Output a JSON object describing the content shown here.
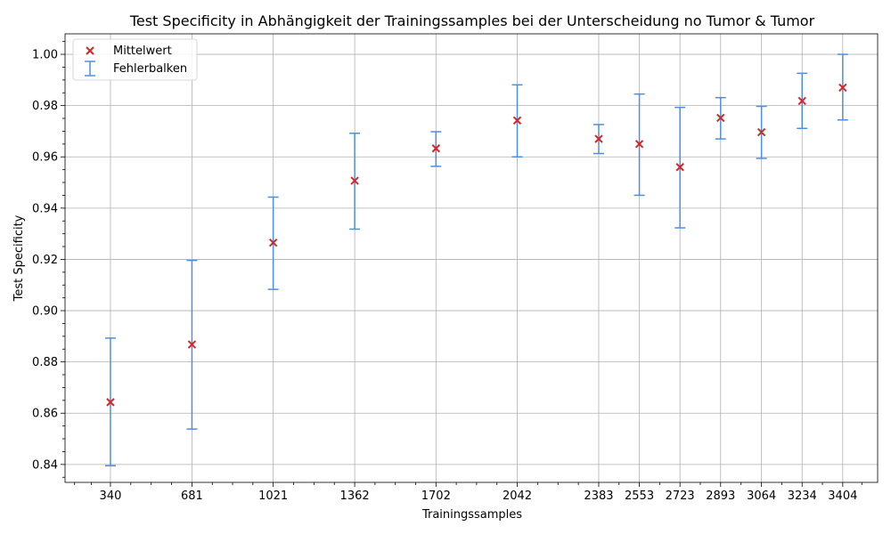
{
  "chart_data": {
    "type": "scatter",
    "title": "Test Specificity in Abhängigkeit der Trainingssamples bei der Unterscheidung no Tumor & Tumor",
    "xlabel": "Trainingssamples",
    "ylabel": "Test Specificity",
    "xlim": [
      150,
      3550
    ],
    "ylim": [
      0.833,
      1.008
    ],
    "yticks": [
      "0.84",
      "0.86",
      "0.88",
      "0.90",
      "0.92",
      "0.94",
      "0.96",
      "0.98",
      "1.00"
    ],
    "grid": true,
    "legend_position": "top-left",
    "legend": {
      "mean_label": "Mittelwert",
      "error_label": "Fehlerbalken"
    },
    "colors": {
      "mean_marker": "#d62728",
      "error_bar": "#4a90e2"
    },
    "points": [
      {
        "label": "340",
        "x": 340,
        "mean": 0.8643,
        "low": 0.8395,
        "high": 0.8893
      },
      {
        "label": "681",
        "x": 681,
        "mean": 0.8868,
        "low": 0.8538,
        "high": 0.9196
      },
      {
        "label": "1021",
        "x": 1021,
        "mean": 0.9265,
        "low": 0.9083,
        "high": 0.9443
      },
      {
        "label": "1362",
        "x": 1362,
        "mean": 0.9507,
        "low": 0.9318,
        "high": 0.9692
      },
      {
        "label": "1702",
        "x": 1702,
        "mean": 0.9633,
        "low": 0.9563,
        "high": 0.9698
      },
      {
        "label": "2042",
        "x": 2042,
        "mean": 0.9742,
        "low": 0.96,
        "high": 0.9881
      },
      {
        "label": "2383",
        "x": 2383,
        "mean": 0.967,
        "low": 0.9613,
        "high": 0.9726
      },
      {
        "label": "2553",
        "x": 2553,
        "mean": 0.965,
        "low": 0.945,
        "high": 0.9845
      },
      {
        "label": "2723",
        "x": 2723,
        "mean": 0.956,
        "low": 0.9323,
        "high": 0.9793
      },
      {
        "label": "2893",
        "x": 2893,
        "mean": 0.9752,
        "low": 0.967,
        "high": 0.9831
      },
      {
        "label": "3064",
        "x": 3064,
        "mean": 0.9696,
        "low": 0.9594,
        "high": 0.9797
      },
      {
        "label": "3234",
        "x": 3234,
        "mean": 0.9818,
        "low": 0.9711,
        "high": 0.9926
      },
      {
        "label": "3404",
        "x": 3404,
        "mean": 0.987,
        "low": 0.9744,
        "high": 1.0
      }
    ]
  }
}
